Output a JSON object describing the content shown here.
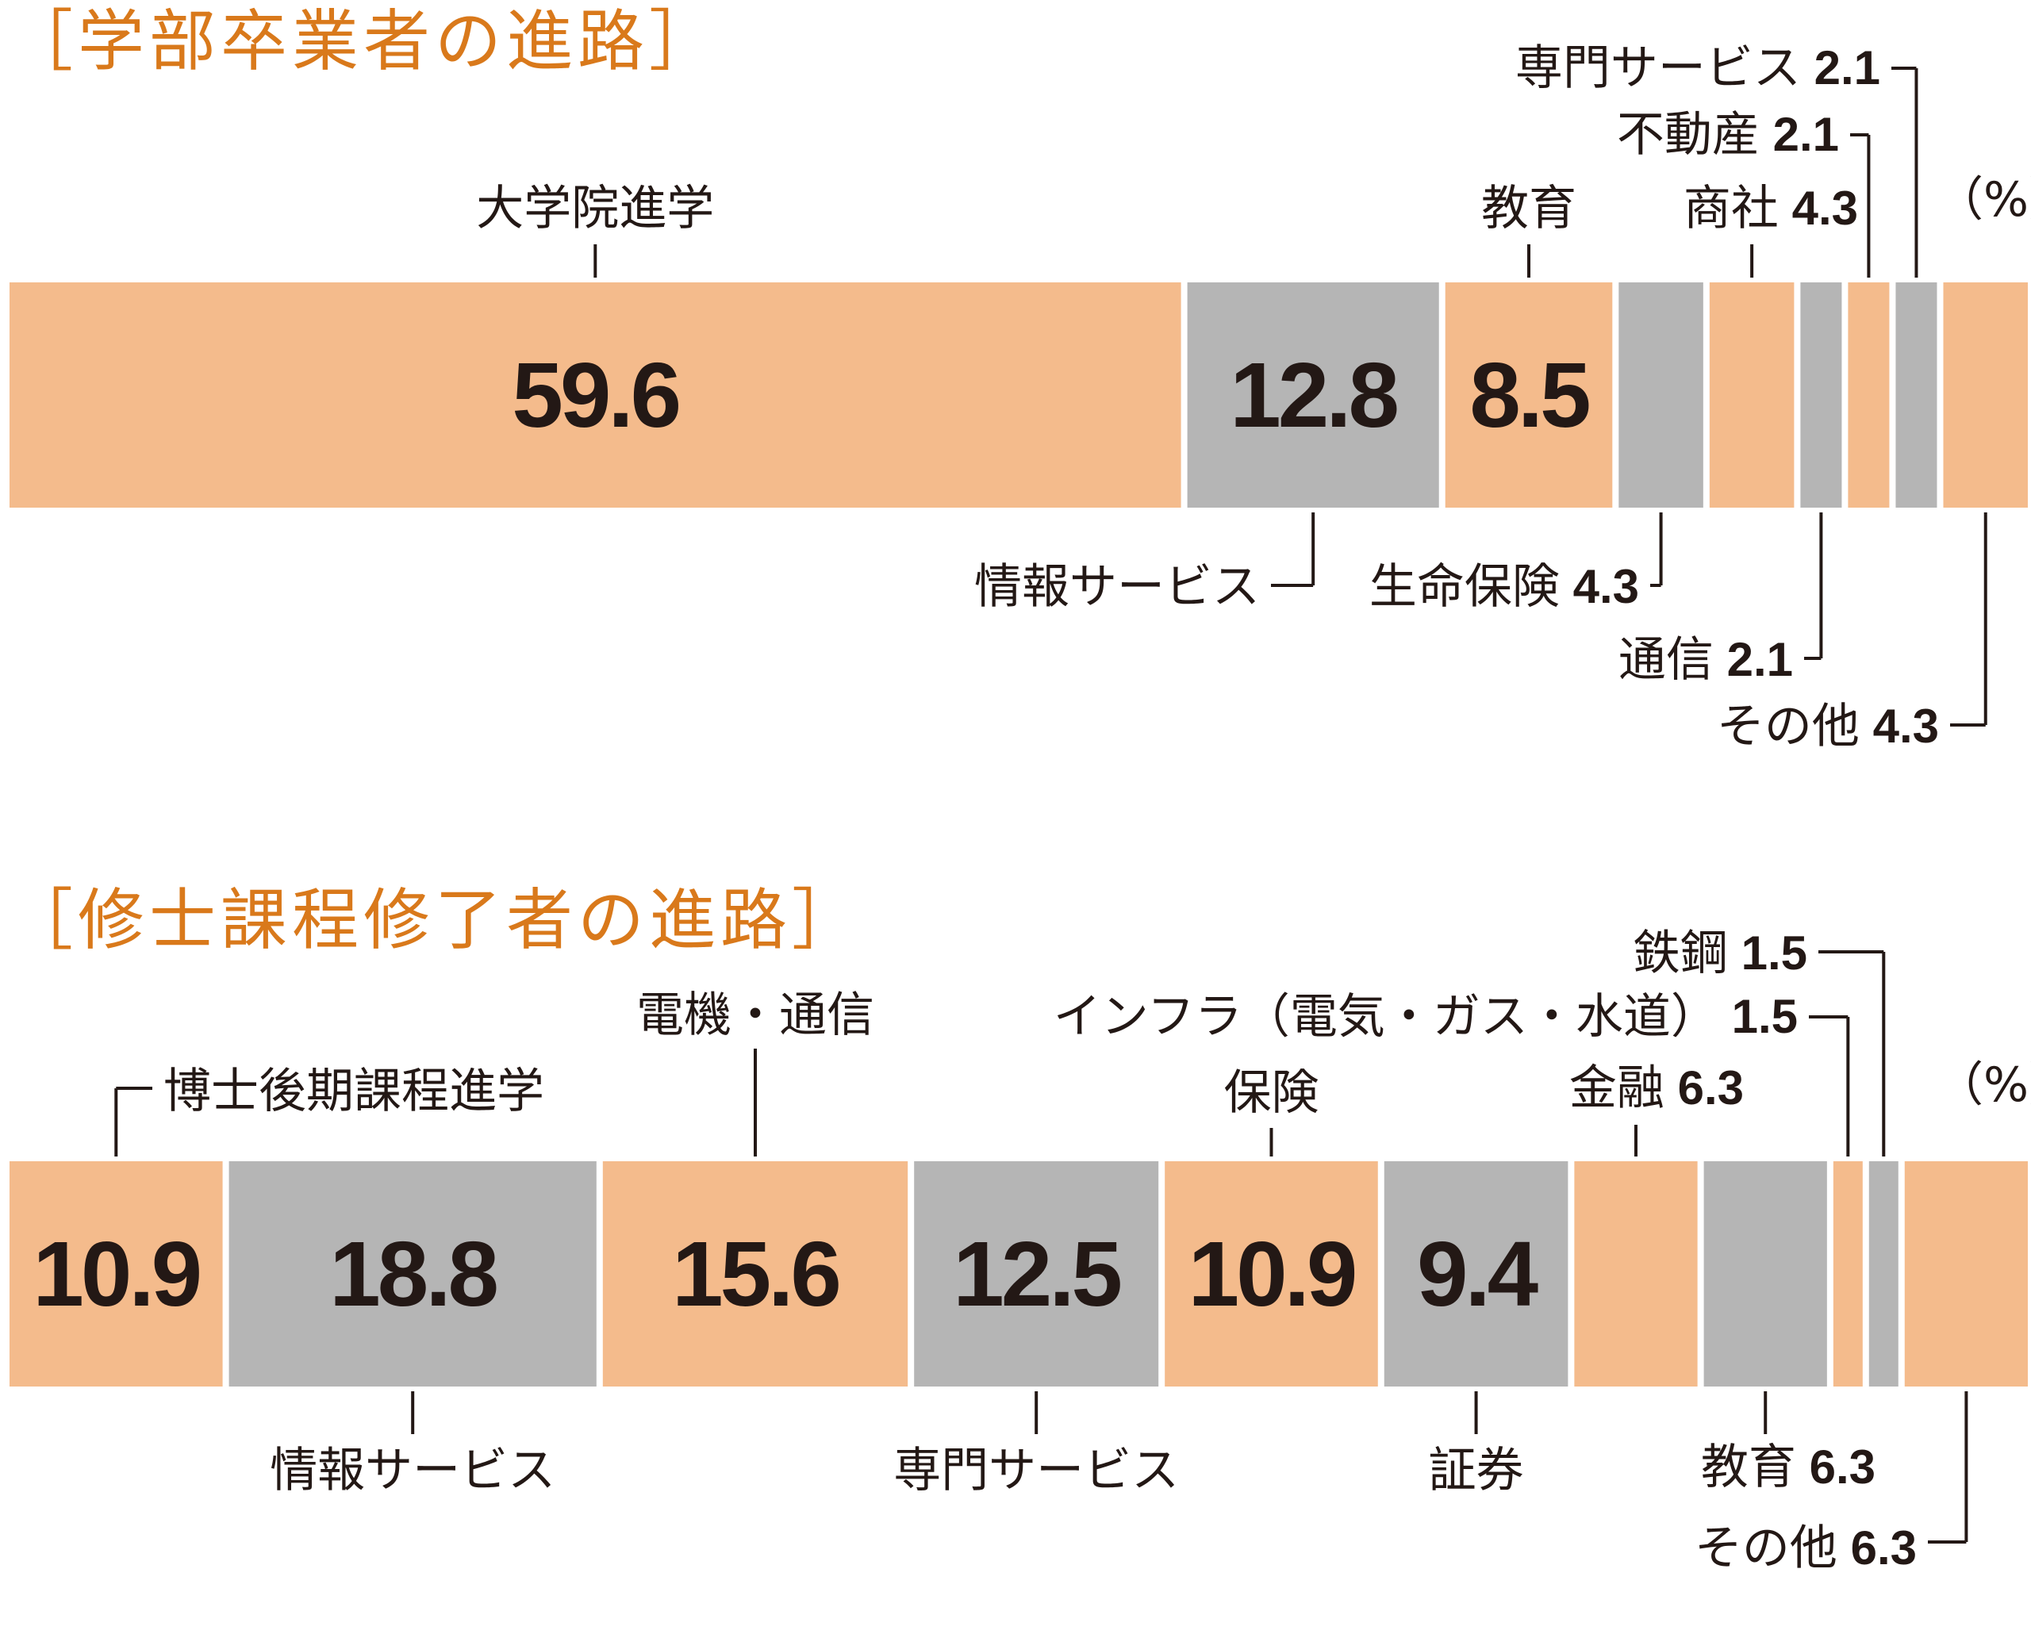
{
  "titles": {
    "chart1": "［学部卒業者の進路］",
    "chart2": "［修士課程修了者の進路］"
  },
  "unit": "（%）",
  "colors": {
    "orange": "#f4bb8c",
    "gray": "#b5b5b5",
    "text": "#231815",
    "title": "#d9791b"
  },
  "chart_data": [
    {
      "type": "bar",
      "stacked": true,
      "orientation": "horizontal",
      "title": "［学部卒業者の進路］",
      "unit": "（%）",
      "segments": [
        {
          "name": "大学院進学",
          "value": 59.6,
          "label": "59.6",
          "color": "orange"
        },
        {
          "name": "情報サービス",
          "value": 12.8,
          "label": "12.8",
          "color": "gray"
        },
        {
          "name": "教育",
          "value": 8.5,
          "label": "8.5",
          "color": "orange"
        },
        {
          "name": "生命保険",
          "value": 4.3,
          "label": "",
          "color": "gray"
        },
        {
          "name": "商社",
          "value": 4.3,
          "label": "",
          "color": "orange"
        },
        {
          "name": "通信",
          "value": 2.1,
          "label": "",
          "color": "gray"
        },
        {
          "name": "不動産",
          "value": 2.1,
          "label": "",
          "color": "orange"
        },
        {
          "name": "専門サービス",
          "value": 2.1,
          "label": "",
          "color": "gray"
        },
        {
          "name": "その他",
          "value": 4.3,
          "label": "",
          "color": "orange"
        }
      ],
      "callouts": [
        {
          "text": "大学院進学",
          "value_text": "",
          "segment": 0,
          "side": "top"
        },
        {
          "text": "教育",
          "value_text": "",
          "segment": 2,
          "side": "top"
        },
        {
          "text": "商社",
          "value_text": "4.3",
          "segment": 4,
          "side": "top"
        },
        {
          "text": "不動産",
          "value_text": "2.1",
          "segment": 6,
          "side": "top"
        },
        {
          "text": "専門サービス",
          "value_text": "2.1",
          "segment": 7,
          "side": "top"
        },
        {
          "text": "情報サービス",
          "value_text": "",
          "segment": 1,
          "side": "bottom"
        },
        {
          "text": "生命保険",
          "value_text": "4.3",
          "segment": 3,
          "side": "bottom"
        },
        {
          "text": "通信",
          "value_text": "2.1",
          "segment": 5,
          "side": "bottom"
        },
        {
          "text": "その他",
          "value_text": "4.3",
          "segment": 8,
          "side": "bottom"
        }
      ]
    },
    {
      "type": "bar",
      "stacked": true,
      "orientation": "horizontal",
      "title": "［修士課程修了者の進路］",
      "unit": "（%）",
      "segments": [
        {
          "name": "博士後期課程進学",
          "value": 10.9,
          "label": "10.9",
          "color": "orange"
        },
        {
          "name": "情報サービス",
          "value": 18.8,
          "label": "18.8",
          "color": "gray"
        },
        {
          "name": "電機・通信",
          "value": 15.6,
          "label": "15.6",
          "color": "orange"
        },
        {
          "name": "専門サービス",
          "value": 12.5,
          "label": "12.5",
          "color": "gray"
        },
        {
          "name": "保険",
          "value": 10.9,
          "label": "10.9",
          "color": "orange"
        },
        {
          "name": "証券",
          "value": 9.4,
          "label": "9.4",
          "color": "gray"
        },
        {
          "name": "金融",
          "value": 6.3,
          "label": "",
          "color": "orange"
        },
        {
          "name": "教育",
          "value": 6.3,
          "label": "",
          "color": "gray"
        },
        {
          "name": "インフラ（電気・ガス・水道）",
          "value": 1.5,
          "label": "",
          "color": "orange"
        },
        {
          "name": "鉄鋼",
          "value": 1.5,
          "label": "",
          "color": "gray"
        },
        {
          "name": "その他",
          "value": 6.3,
          "label": "",
          "color": "orange"
        }
      ],
      "callouts": [
        {
          "text": "博士後期課程進学",
          "value_text": "",
          "segment": 0,
          "side": "top"
        },
        {
          "text": "電機・通信",
          "value_text": "",
          "segment": 2,
          "side": "top"
        },
        {
          "text": "保険",
          "value_text": "",
          "segment": 4,
          "side": "top"
        },
        {
          "text": "金融",
          "value_text": "6.3",
          "segment": 6,
          "side": "top"
        },
        {
          "text": "インフラ（電気・ガス・水道）",
          "value_text": "1.5",
          "segment": 8,
          "side": "top"
        },
        {
          "text": "鉄鋼",
          "value_text": "1.5",
          "segment": 9,
          "side": "top"
        },
        {
          "text": "情報サービス",
          "value_text": "",
          "segment": 1,
          "side": "bottom"
        },
        {
          "text": "専門サービス",
          "value_text": "",
          "segment": 3,
          "side": "bottom"
        },
        {
          "text": "証券",
          "value_text": "",
          "segment": 5,
          "side": "bottom"
        },
        {
          "text": "教育",
          "value_text": "6.3",
          "segment": 7,
          "side": "bottom"
        },
        {
          "text": "その他",
          "value_text": "6.3",
          "segment": 10,
          "side": "bottom"
        }
      ]
    }
  ]
}
